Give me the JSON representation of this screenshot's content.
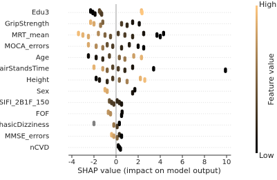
{
  "chart_data": {
    "type": "beeswarm",
    "x_label": "SHAP value (impact on model output)",
    "colorbar_label": "Feature value",
    "colorbar_high": "High",
    "colorbar_low": "Low",
    "colormap": [
      "#000000",
      "#ffc77f"
    ],
    "missing_color": "#808080",
    "xlim": [
      -4.3,
      10.4
    ],
    "xticks": [
      -4,
      -2,
      0,
      2,
      4,
      6,
      8,
      10
    ],
    "reference_line": 0,
    "series": [
      {
        "name": "Edu3",
        "values": [
          -2.3,
          -2.1,
          -1.9,
          -1.5,
          -1.4,
          -1.3,
          2.3,
          2.35
        ],
        "feature_values": [
          0,
          0,
          0.05,
          0.35,
          0.4,
          0.3,
          0.95,
          1
        ]
      },
      {
        "name": "GripStrength",
        "values": [
          -2.3,
          -2.0,
          -1.4,
          -1.2,
          0.5,
          1.0,
          1.5,
          2.1
        ],
        "feature_values": [
          0.9,
          0.85,
          0.6,
          0.5,
          0.3,
          0.2,
          0.1,
          0.05
        ]
      },
      {
        "name": "MRT_mean",
        "values": [
          -3.4,
          -3.0,
          -2.5,
          -1.6,
          -1.0,
          -0.5,
          0.2,
          0.8,
          1.5,
          2.5,
          3.7,
          4.0,
          4.3
        ],
        "feature_values": [
          0.95,
          0.9,
          0.85,
          0.7,
          0.5,
          0.4,
          0.3,
          0.3,
          0.2,
          0.1,
          0,
          0,
          0
        ]
      },
      {
        "name": "MOCA_errors",
        "values": [
          -2.5,
          -1.8,
          -1.2,
          -0.8,
          -0.3,
          0.5,
          1.2,
          2.0,
          2.5
        ],
        "feature_values": [
          0.85,
          0.7,
          0.6,
          0.4,
          0.3,
          0.2,
          0.15,
          0.05,
          0
        ]
      },
      {
        "name": "Age",
        "values": [
          -2.5,
          -1.8,
          -1.2,
          -0.6,
          0.3,
          0.8,
          1.6,
          2.3
        ],
        "feature_values": [
          0.05,
          0.1,
          0.2,
          0.35,
          0.5,
          0.6,
          0.8,
          0.9
        ]
      },
      {
        "name": "ChairStandsTime",
        "values": [
          -2.0,
          -1.2,
          -0.8,
          -0.3,
          0.2,
          0.8,
          1.5,
          3.4,
          9.9
        ],
        "feature_values": [
          0.9,
          0.8,
          0.5,
          0.35,
          0.3,
          0.2,
          0.1,
          0,
          0
        ]
      },
      {
        "name": "Height",
        "values": [
          -1.8,
          -1.5,
          -0.8,
          -0.3,
          0.3,
          1.0,
          2.2,
          2.6
        ],
        "feature_values": [
          0.05,
          0.1,
          0.2,
          0.3,
          0.5,
          0.65,
          0.9,
          0.95
        ]
      },
      {
        "name": "Sex",
        "values": [
          -1.0,
          -0.8,
          1.5,
          1.7
        ],
        "feature_values": [
          0.9,
          0.85,
          0.1,
          0.05
        ]
      },
      {
        "name": "SIFI_2B1F_150",
        "values": [
          -0.6,
          -0.4,
          -0.2,
          0.1,
          0.3,
          0.5
        ],
        "feature_values": [
          0.4,
          0.3,
          0.3,
          0.2,
          0.2,
          0.1
        ]
      },
      {
        "name": "FOF",
        "values": [
          -0.7,
          -0.5,
          0.5,
          0.55
        ],
        "feature_values": [
          0.75,
          0.7,
          0,
          0.05
        ]
      },
      {
        "name": "PhasicDizziness",
        "values": [
          -2.0,
          -0.2,
          0.1,
          0.3
        ],
        "feature_values": [
          null,
          0.6,
          0.3,
          0
        ]
      },
      {
        "name": "MMSE_errors",
        "values": [
          -0.4,
          -0.2,
          0.1,
          0.3,
          0.5
        ],
        "feature_values": [
          0.9,
          0.8,
          0.5,
          0.2,
          0
        ]
      },
      {
        "name": "nCVD",
        "values": [
          0.2,
          0.3,
          0.4
        ],
        "feature_values": [
          0.05,
          0,
          0
        ]
      }
    ]
  }
}
